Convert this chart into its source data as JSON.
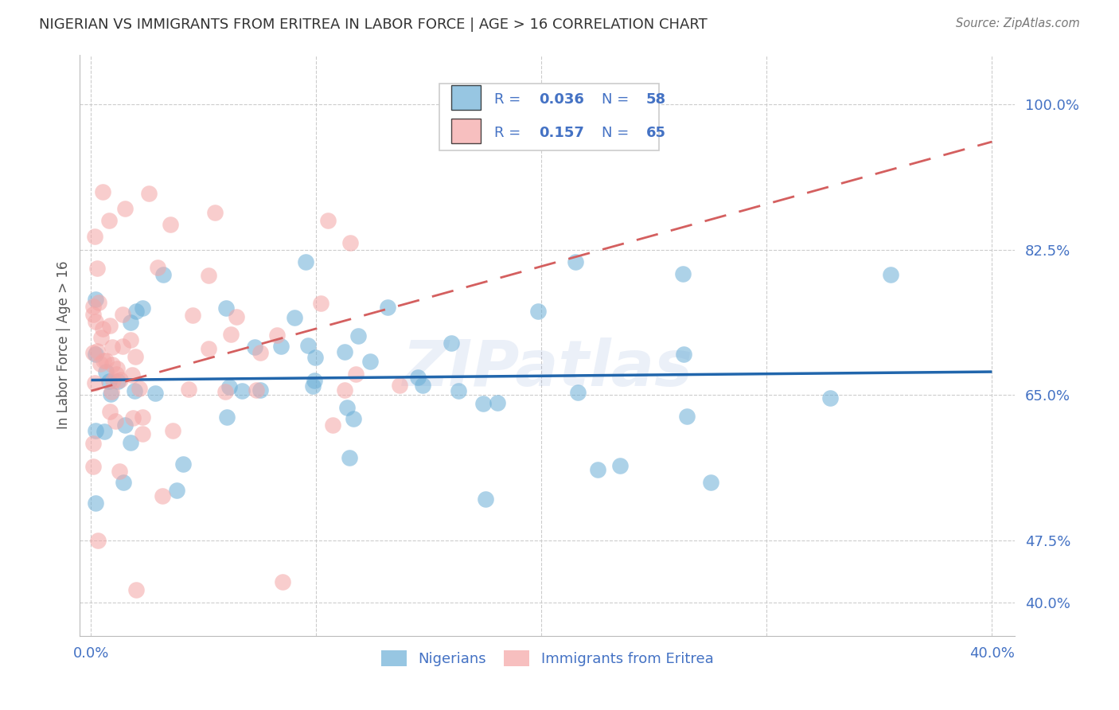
{
  "title": "NIGERIAN VS IMMIGRANTS FROM ERITREA IN LABOR FORCE | AGE > 16 CORRELATION CHART",
  "source": "Source: ZipAtlas.com",
  "ylabel": "In Labor Force | Age > 16",
  "ytick_labels": [
    "40.0%",
    "47.5%",
    "65.0%",
    "82.5%",
    "100.0%"
  ],
  "ytick_values": [
    0.4,
    0.475,
    0.65,
    0.825,
    1.0
  ],
  "xtick_labels": [
    "0.0%",
    "40.0%"
  ],
  "xtick_values": [
    0.0,
    0.4
  ],
  "xlim": [
    -0.005,
    0.41
  ],
  "ylim": [
    0.36,
    1.06
  ],
  "blue_R": "0.036",
  "blue_N": "58",
  "pink_R": "0.157",
  "pink_N": "65",
  "blue_color": "#6baed6",
  "pink_color": "#f4a5a5",
  "blue_line_color": "#2166ac",
  "pink_line_color": "#d45f5f",
  "legend_label_blue": "Nigerians",
  "legend_label_pink": "Immigrants from Eritrea",
  "watermark": "ZIPatlas",
  "grid_color": "#cccccc",
  "background_color": "#ffffff",
  "title_color": "#333333",
  "tick_color": "#4472c4",
  "blue_trend_x": [
    0.0,
    0.4
  ],
  "blue_trend_y": [
    0.668,
    0.678
  ],
  "pink_trend_x": [
    0.0,
    0.4
  ],
  "pink_trend_y": [
    0.655,
    0.955
  ]
}
